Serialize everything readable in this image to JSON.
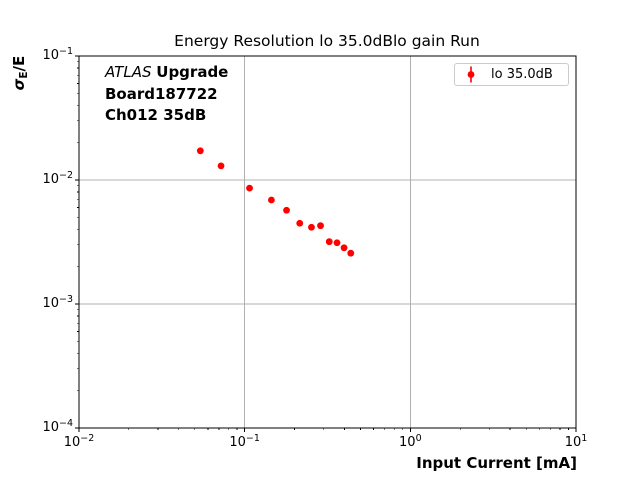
{
  "axes": {
    "ylabel_sigma": "σ",
    "ylabel_sub": "E",
    "ylabel_rest": "/E"
  },
  "annotation": {
    "line1_italic": "ATLAS",
    "line1_bold": "Upgrade",
    "line2": "Board187722",
    "line3": "Ch012 35dB"
  },
  "legend": {
    "label": "lo 35.0dB"
  },
  "chart_data": {
    "type": "scatter",
    "title": "Energy Resolution lo 35.0dBlo gain Run",
    "xlabel": "Input Current [mA]",
    "ylabel": "σ_E/E",
    "xscale": "log",
    "yscale": "log",
    "xlim": [
      0.01,
      10
    ],
    "ylim": [
      0.0001,
      0.1
    ],
    "x_tick_exponents": [
      -2,
      -1,
      0,
      1
    ],
    "y_tick_exponents": [
      -1,
      -2,
      -3,
      -4
    ],
    "grid": "major",
    "grid_color": "#b0b0b0",
    "point_color": "#ff0000",
    "legend_position": "upper right",
    "series": [
      {
        "name": "lo 35.0dB",
        "color": "#ff0000",
        "marker": "circle-with-errorbar",
        "x": [
          0.054,
          0.072,
          0.107,
          0.145,
          0.179,
          0.215,
          0.253,
          0.287,
          0.324,
          0.361,
          0.398,
          0.437
        ],
        "y": [
          0.0172,
          0.013,
          0.0086,
          0.0069,
          0.0057,
          0.00448,
          0.00416,
          0.00428,
          0.00318,
          0.00312,
          0.00284,
          0.00257
        ]
      }
    ]
  }
}
